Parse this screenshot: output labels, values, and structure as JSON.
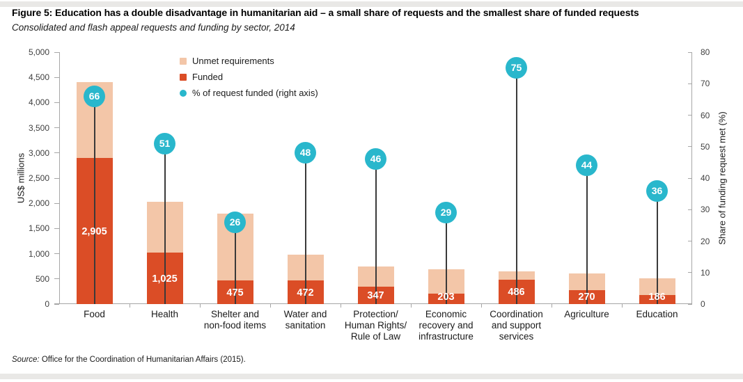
{
  "header": {
    "title": "Figure 5: Education has a double disadvantage in humanitarian aid – a small share of requests and the smallest share of funded requests",
    "subtitle": "Consolidated and flash appeal requests and funding by sector, 2014"
  },
  "footer": {
    "source_prefix": "Source:",
    "source_text": " Office for the Coordination of Humanitarian Affairs (2015)."
  },
  "colors": {
    "funded": "#DB4D26",
    "unmet": "#F3C6A8",
    "percent": "#29B7CC",
    "stick": "#3A3A3A",
    "axis": "#A6A6A6",
    "divider": "#E9E8E6"
  },
  "chart_data": {
    "type": "bar",
    "title": "Figure 5: Education has a double disadvantage in humanitarian aid – a small share of requests and the smallest share of funded requests",
    "subtitle": "Consolidated and flash appeal requests and funding by sector, 2014",
    "ylabel_left": "US$ millions",
    "ylabel_right": "Share of funding request met (%)",
    "y_left": {
      "min": 0,
      "max": 5000,
      "step": 500
    },
    "y_right": {
      "min": 0,
      "max": 80,
      "step": 10
    },
    "grid": false,
    "legend_position": "top-left-of-plot",
    "legend": [
      {
        "label": "Unmet requirements",
        "marker": "square",
        "color": "#F3C6A8"
      },
      {
        "label": "Funded",
        "marker": "square",
        "color": "#DB4D26"
      },
      {
        "label": "% of request funded (right axis)",
        "marker": "circle",
        "color": "#29B7CC"
      }
    ],
    "categories": [
      "Food",
      "Health",
      "Shelter and\nnon-food items",
      "Water and\nsanitation",
      "Protection/\nHuman Rights/\nRule of Law",
      "Economic\nrecovery and\ninfrastructure",
      "Coordination\nand support\nservices",
      "Agriculture",
      "Education"
    ],
    "series": [
      {
        "name": "Funded",
        "axis": "left",
        "values": [
          2905,
          1025,
          475,
          472,
          347,
          203,
          486,
          270,
          186
        ],
        "labels": [
          "2,905",
          "1,025",
          "475",
          "472",
          "347",
          "203",
          "486",
          "270",
          "186"
        ]
      },
      {
        "name": "Total request (funded + unmet)",
        "axis": "left",
        "values": [
          4400,
          2025,
          1790,
          980,
          750,
          690,
          655,
          610,
          515
        ]
      },
      {
        "name": "% of request funded",
        "axis": "right",
        "values": [
          66,
          51,
          26,
          48,
          46,
          29,
          75,
          44,
          36
        ]
      }
    ]
  }
}
